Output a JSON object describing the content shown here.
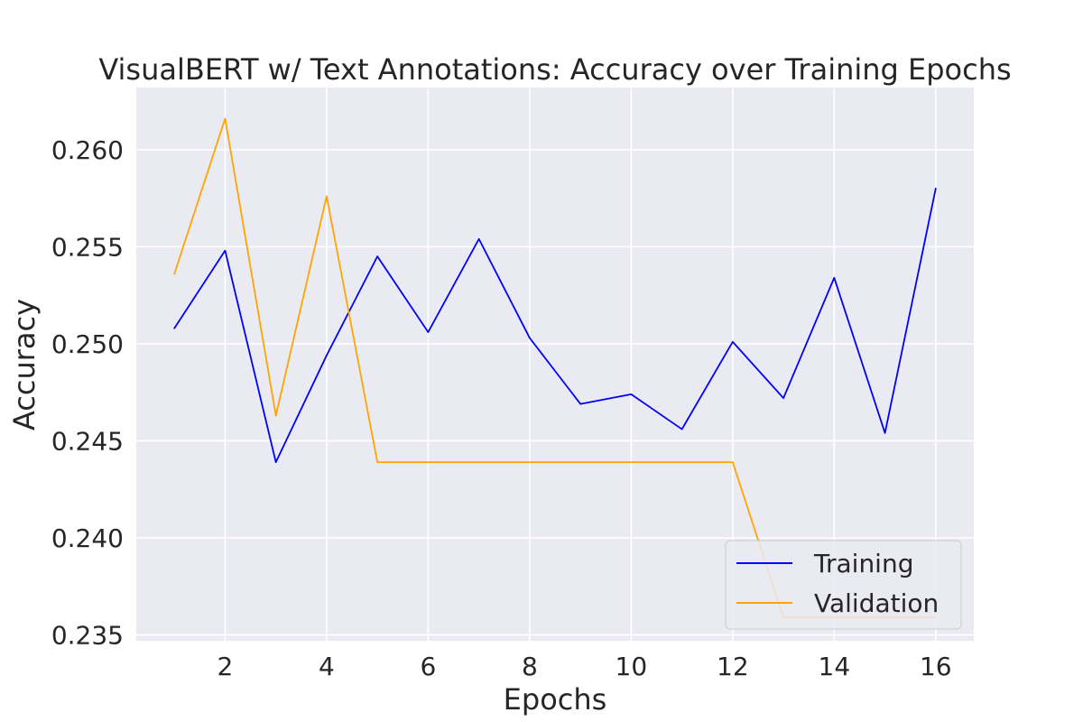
{
  "chart_data": {
    "type": "line",
    "title": "VisualBERT w/ Text Annotations: Accuracy over Training Epochs",
    "xlabel": "Epochs",
    "ylabel": "Accuracy",
    "x": [
      1,
      2,
      3,
      4,
      5,
      6,
      7,
      8,
      9,
      10,
      11,
      12,
      13,
      14,
      15,
      16
    ],
    "xlim": [
      0.25,
      16.75
    ],
    "ylim": [
      0.2347,
      0.2632
    ],
    "xticks": [
      2,
      4,
      6,
      8,
      10,
      12,
      14,
      16
    ],
    "yticks": [
      0.235,
      0.24,
      0.245,
      0.25,
      0.255,
      0.26
    ],
    "ytick_labels": [
      "0.235",
      "0.240",
      "0.245",
      "0.250",
      "0.255",
      "0.260"
    ],
    "grid": true,
    "background": "#eaeaf2",
    "legend_position": "lower-right",
    "series": [
      {
        "name": "Training",
        "color": "#0000ff",
        "values": [
          0.2508,
          0.2548,
          0.2439,
          0.2494,
          0.2545,
          0.2506,
          0.2554,
          0.2503,
          0.2469,
          0.2474,
          0.2456,
          0.2501,
          0.2472,
          0.2534,
          0.2454,
          0.258
        ]
      },
      {
        "name": "Validation",
        "color": "#ffa500",
        "values": [
          0.2536,
          0.2616,
          0.2463,
          0.2576,
          0.2439,
          0.2439,
          0.2439,
          0.2439,
          0.2439,
          0.2439,
          0.2439,
          0.2439,
          0.2359,
          0.2359,
          0.2359,
          0.2359
        ]
      }
    ]
  }
}
